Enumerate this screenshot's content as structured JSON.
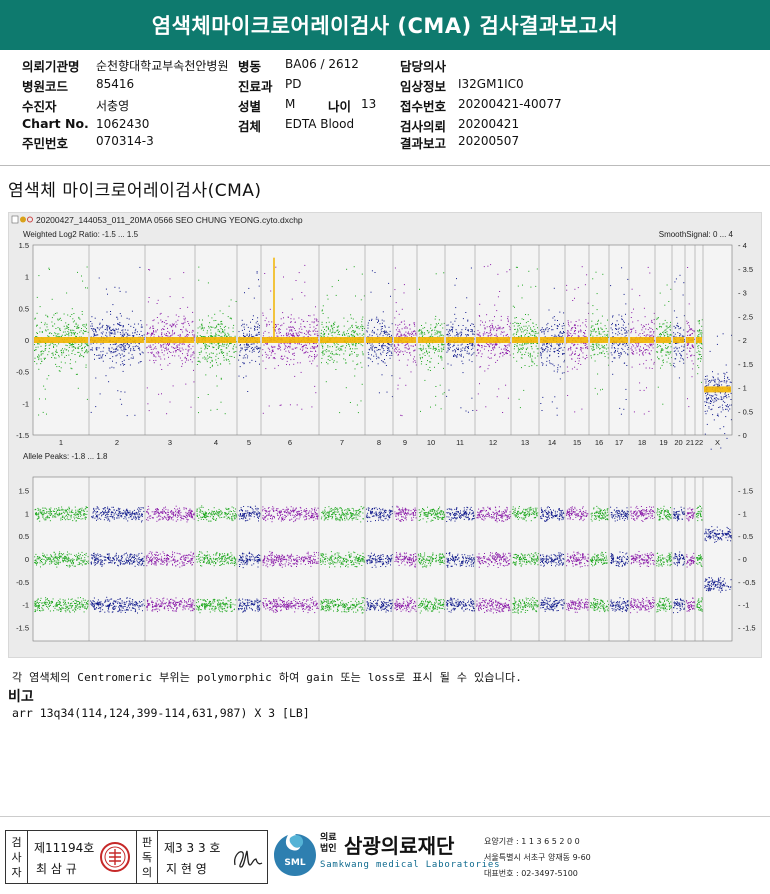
{
  "report": {
    "title": "염색체마이크로어레이검사 (CMA) 검사결과보고서"
  },
  "info": {
    "hospital_label": "의뢰기관명",
    "hospital_value": "순천향대학교부속천안병원",
    "ward_label": "병동",
    "ward_value": "BA06 / 2612",
    "doctor_label": "담당의사",
    "doctor_value": "",
    "code_label": "병원코드",
    "code_value": "85416",
    "dept_label": "진료과",
    "dept_value": "PD",
    "clinical_label": "임상정보",
    "clinical_value": "I32GM1IC0",
    "patient_label": "수진자",
    "patient_value": "서충영",
    "sex_label": "성별",
    "sex_value": "M",
    "age_label": "나이",
    "age_value": "13",
    "receipt_label": "접수번호",
    "receipt_value": "20200421-40077",
    "chart_label": "Chart No.",
    "chart_value": "1062430",
    "specimen_label": "검체",
    "specimen_value": "EDTA Blood",
    "request_label": "검사의뢰",
    "request_value": "20200421",
    "id_label": "주민번호",
    "id_value": "070314-3",
    "result_label": "결과보고",
    "result_value": "20200507"
  },
  "section": {
    "title": "염색체 마이크로어레이검사(CMA)"
  },
  "figure": {
    "file_name": "20200427_144053_011_20MA 0566 SEO CHUNG YEONG.cyto.dxchp",
    "top_panel_label": "Weighted Log2 Ratio: -1.5 ... 1.5",
    "smooth_label": "SmoothSignal: 0 ... 4",
    "bottom_panel_label": "Allele Peaks: -1.8 ... 1.8",
    "chromosomes": [
      "1",
      "2",
      "3",
      "4",
      "5",
      "6",
      "7",
      "8",
      "9",
      "10",
      "11",
      "12",
      "13",
      "14",
      "15",
      "16",
      "17",
      "18",
      "19",
      "20",
      "21",
      "22",
      "X",
      "Y"
    ],
    "log2_ticks": [
      "1.5",
      "1",
      "0.5",
      "0",
      "-0.5",
      "-1",
      "-1.5"
    ],
    "smooth_ticks": [
      "4",
      "3.5",
      "3",
      "2.5",
      "2",
      "1.5",
      "1",
      "0.5",
      "0"
    ],
    "allele_ticks": [
      "1.5",
      "1",
      "0.5",
      "0",
      "-0.5",
      "-1",
      "-1.5"
    ],
    "allele_right_ticks": [
      "1.5",
      "1",
      "0.5",
      "0",
      "-0.5",
      "-1",
      "-1.5"
    ],
    "colors": {
      "green": "#1fa81f",
      "navy": "#101a8c",
      "purple": "#8a1aa8",
      "orange": "#f2b400",
      "background": "#ebebeb"
    }
  },
  "note": "각 염색체의 Centromeric 부위는 polymorphic 하여 gain 또는 loss로 표시 될 수 있습니다.",
  "remark": {
    "title": "비고",
    "text": "arr 13q34(114,124,399-114,631,987) X 3 [LB]"
  },
  "footer": {
    "examiner_label": [
      "검",
      "사",
      "자"
    ],
    "examiner_license": "제11194호",
    "examiner_name": "최 삼 규",
    "reviewer_label": [
      "판",
      "독",
      "의"
    ],
    "reviewer_license": "제3 3 3 호",
    "reviewer_name": "지 현 영",
    "org_prefix": [
      "의료",
      "법인"
    ],
    "org_name": "삼광의료재단",
    "org_english": "Samkwang medical Laboratories",
    "logo_text": "SML",
    "contact_lines": [
      "요양기관 : 1 1 3 6 5 2 0 0",
      "서울특별시 서초구 양재동 9-60",
      "대표번호 : 02-3497-5100"
    ]
  }
}
